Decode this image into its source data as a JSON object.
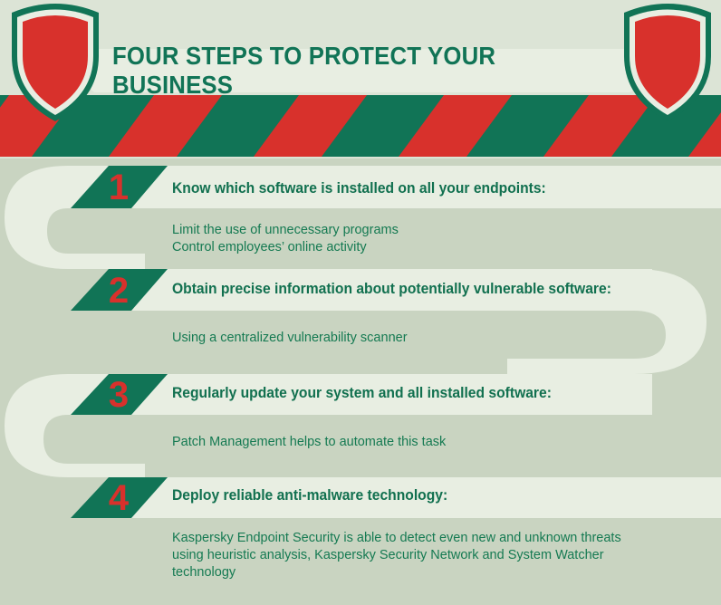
{
  "title": "FOUR STEPS TO PROTECT YOUR BUSINESS",
  "colors": {
    "green": "#117456",
    "red": "#d8312c",
    "cream": "#e8eee2",
    "background": "#c9d4c1"
  },
  "icons": {
    "left_shield": "shield-icon",
    "right_shield": "shield-icon"
  },
  "steps": [
    {
      "number": "1",
      "heading": "Know which software is installed on all your endpoints:",
      "lines": [
        "Limit the use of unnecessary programs",
        "Control employees’ online activity"
      ]
    },
    {
      "number": "2",
      "heading": "Obtain precise information about potentially vulnerable software:",
      "lines": [
        "Using a centralized vulnerability scanner"
      ]
    },
    {
      "number": "3",
      "heading": "Regularly update your system and all installed software:",
      "lines": [
        "Patch Management helps to automate this task"
      ]
    },
    {
      "number": "4",
      "heading": "Deploy reliable anti-malware technology:",
      "lines": [
        "Kaspersky Endpoint Security is able to detect even new and unknown threats",
        "using heuristic analysis, Kaspersky Security Network and System Watcher",
        "technology"
      ]
    }
  ]
}
